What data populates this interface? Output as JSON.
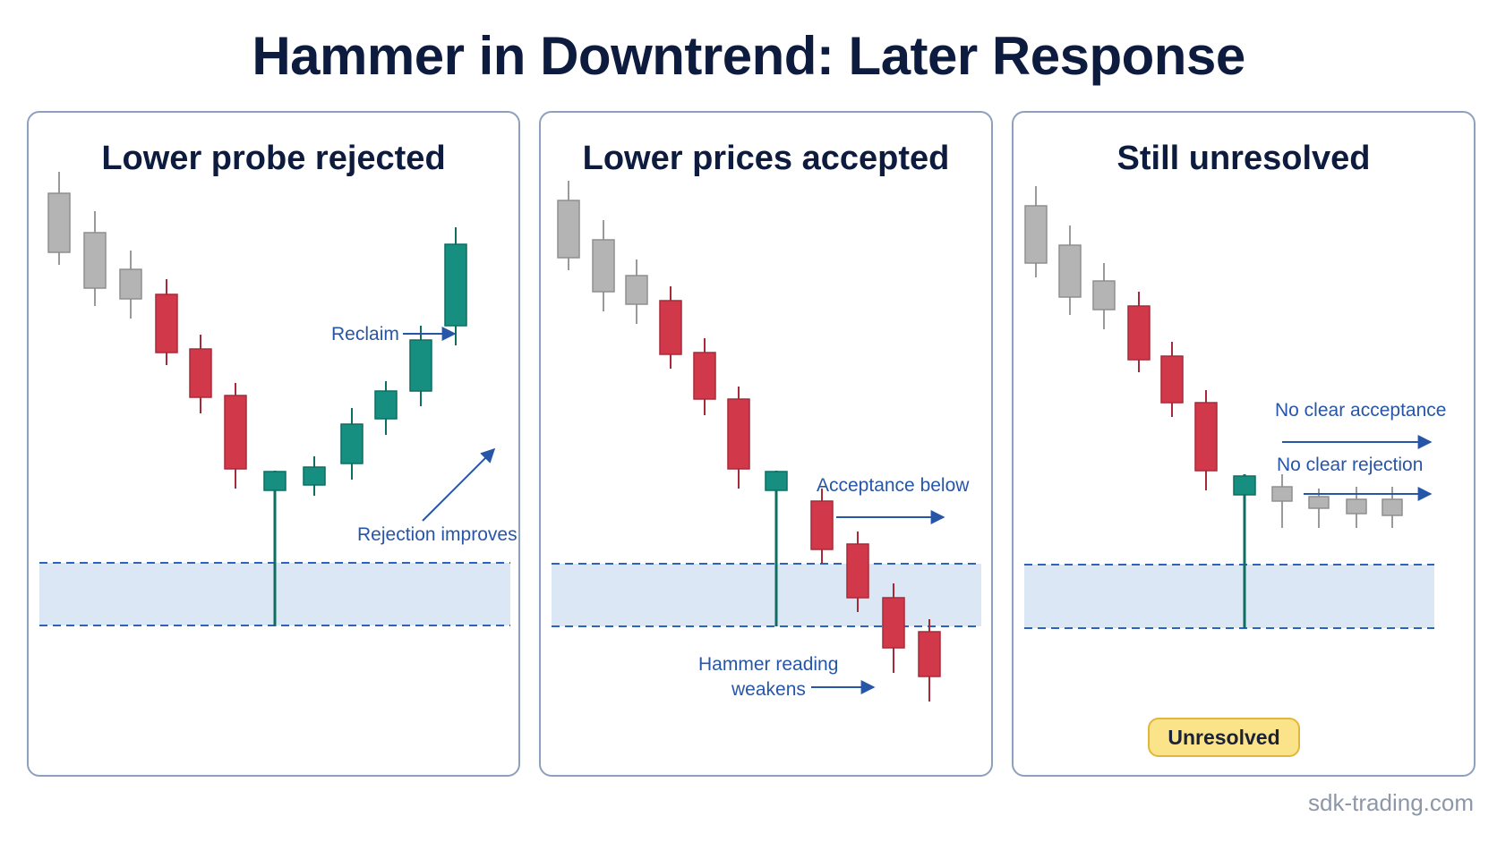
{
  "title": "Hammer in Downtrend: Later Response",
  "colors": {
    "bearish": "#d1394a",
    "bullish": "#178f80",
    "neutral": "#b4b4b4",
    "zone_fill": "#dbe7f5",
    "zone_border": "#2f62b8",
    "annotation": "#2756a8",
    "badge_fill": "#fbe38a"
  },
  "panels": [
    {
      "title": "Lower probe rejected",
      "annotations": [
        "Reclaim",
        "Rejection improves"
      ]
    },
    {
      "title": "Lower prices accepted",
      "annotations": [
        "Acceptance below",
        "Hammer reading",
        "weakens"
      ]
    },
    {
      "title": "Still unresolved",
      "annotations": [
        "No clear acceptance",
        "No clear rejection"
      ],
      "badge": "Unresolved"
    }
  ],
  "watermark": "sdk-trading.com"
}
